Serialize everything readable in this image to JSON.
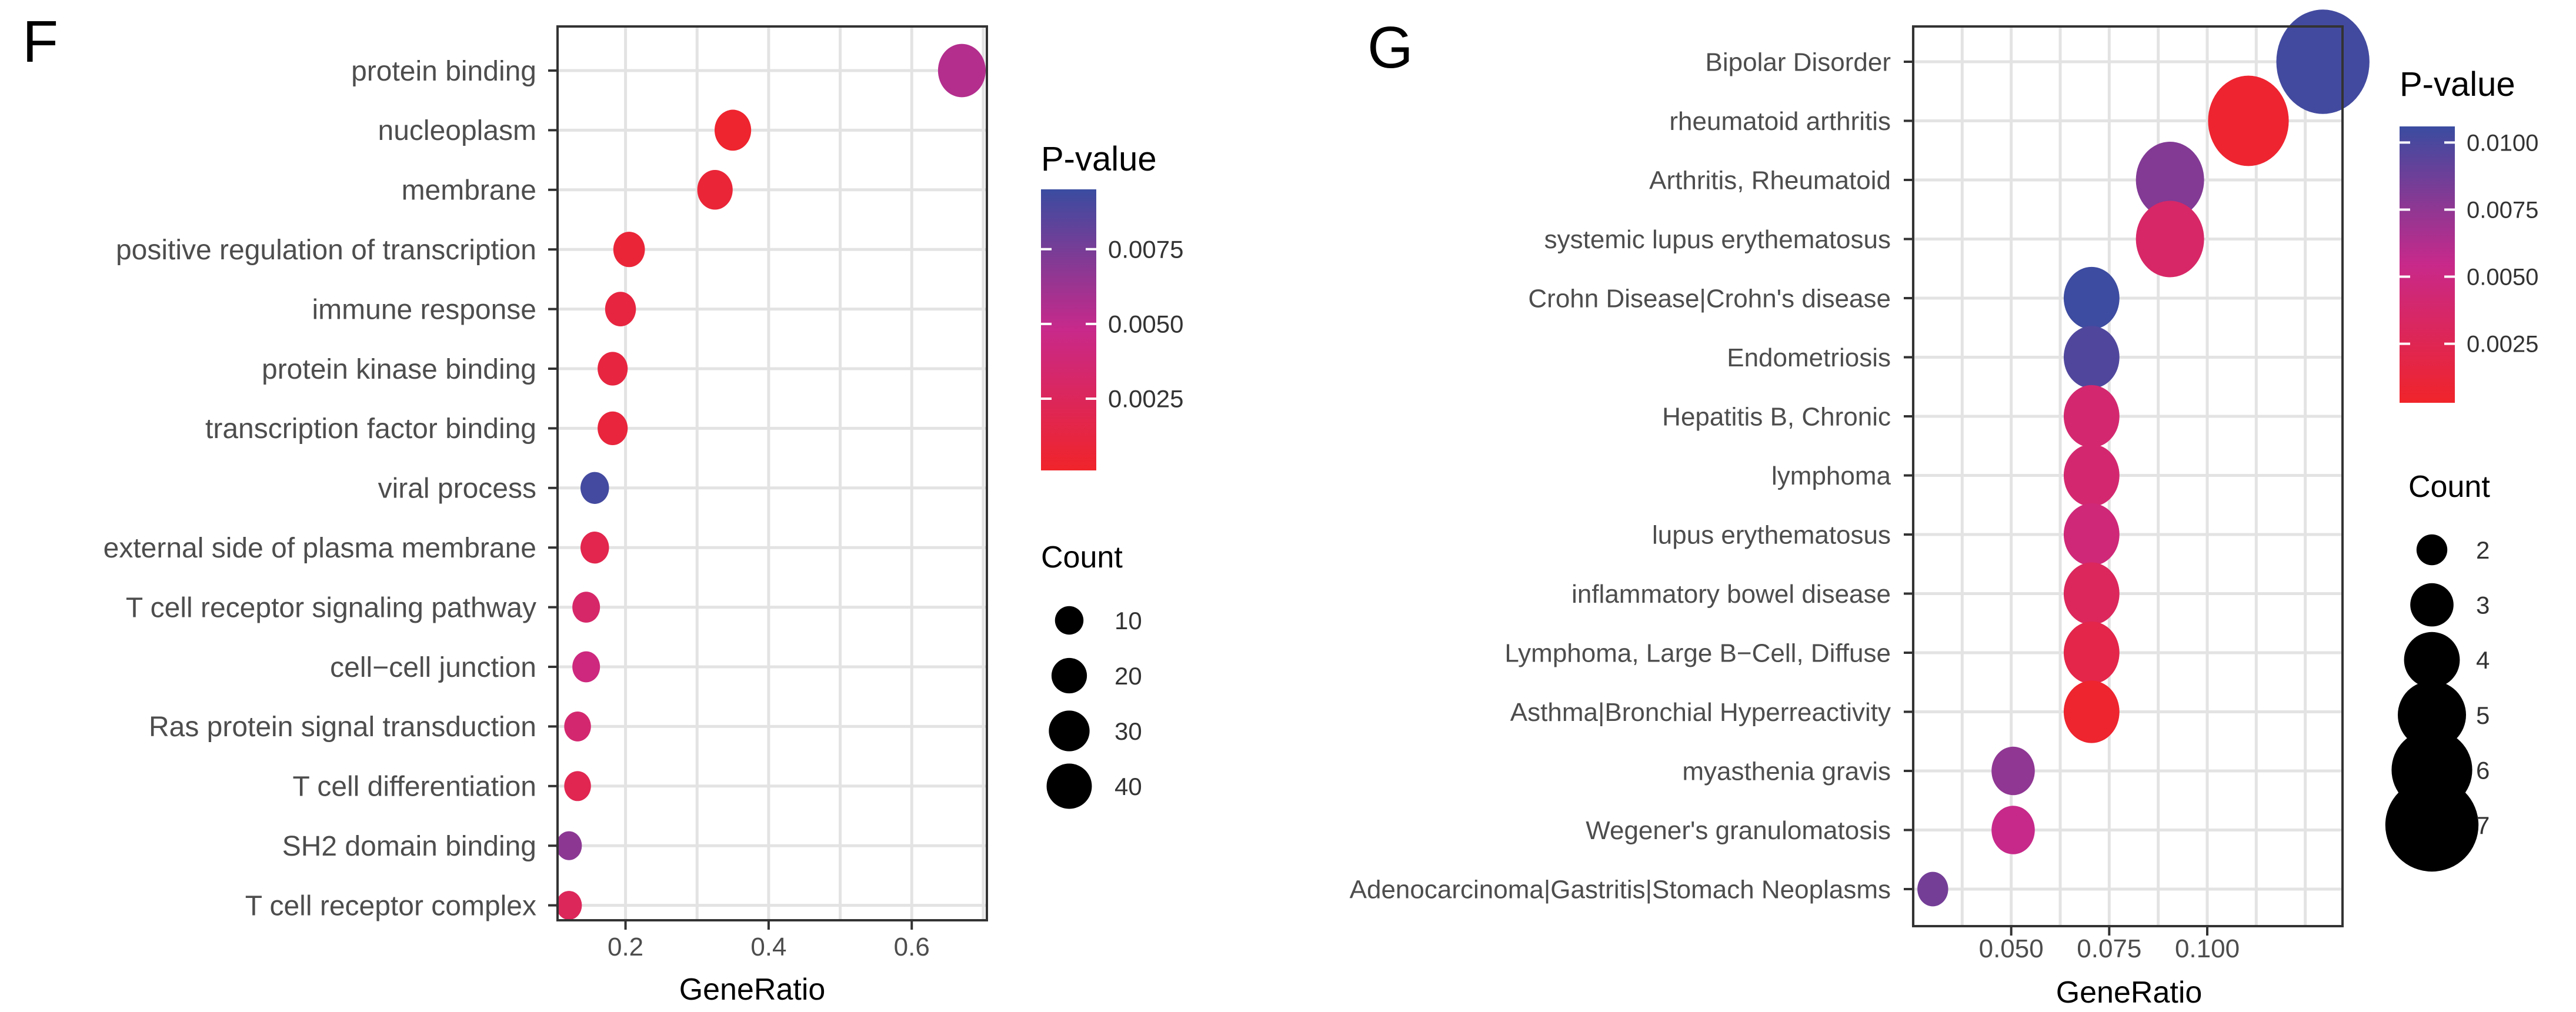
{
  "figure": {
    "panel_f_label": "F",
    "panel_g_label": "G"
  },
  "chart_data": [
    {
      "type": "scatter",
      "panel": "F",
      "title": "",
      "xlabel": "GeneRatio",
      "ylabel": "",
      "xlim": [
        0.105,
        0.705
      ],
      "xticks": [
        0.2,
        0.4,
        0.6
      ],
      "xtick_labels": [
        "0.2",
        "0.4",
        "0.6"
      ],
      "grid": true,
      "categories": [
        "protein binding",
        "nucleoplasm",
        "membrane",
        "positive regulation of transcription",
        "immune response",
        "protein kinase binding",
        "transcription factor binding",
        "viral process",
        "external side of plasma membrane",
        "T cell receptor signaling pathway",
        "cell−cell junction",
        "Ras protein signal transduction",
        "T cell differentiation",
        "SH2 domain binding",
        "T cell receptor complex"
      ],
      "points": [
        {
          "term": "protein binding",
          "gene_ratio": 0.67,
          "count": 46,
          "p_value": 0.0055
        },
        {
          "term": "nucleoplasm",
          "gene_ratio": 0.35,
          "count": 22,
          "p_value": 0.0003
        },
        {
          "term": "membrane",
          "gene_ratio": 0.325,
          "count": 20,
          "p_value": 0.0008
        },
        {
          "term": "positive regulation of transcription",
          "gene_ratio": 0.205,
          "count": 14,
          "p_value": 0.0008
        },
        {
          "term": "immune response",
          "gene_ratio": 0.193,
          "count": 13,
          "p_value": 0.0012
        },
        {
          "term": "protein kinase binding",
          "gene_ratio": 0.182,
          "count": 12,
          "p_value": 0.0012
        },
        {
          "term": "transcription factor binding",
          "gene_ratio": 0.182,
          "count": 12,
          "p_value": 0.001
        },
        {
          "term": "viral process",
          "gene_ratio": 0.157,
          "count": 10,
          "p_value": 0.0092
        },
        {
          "term": "external side of plasma membrane",
          "gene_ratio": 0.157,
          "count": 10,
          "p_value": 0.0018
        },
        {
          "term": "T cell receptor signaling pathway",
          "gene_ratio": 0.145,
          "count": 9,
          "p_value": 0.0032
        },
        {
          "term": "cell−cell junction",
          "gene_ratio": 0.145,
          "count": 9,
          "p_value": 0.0042
        },
        {
          "term": "Ras protein signal transduction",
          "gene_ratio": 0.133,
          "count": 8,
          "p_value": 0.0035
        },
        {
          "term": "T cell differentiation",
          "gene_ratio": 0.133,
          "count": 8,
          "p_value": 0.002
        },
        {
          "term": "SH2 domain binding",
          "gene_ratio": 0.121,
          "count": 7,
          "p_value": 0.0068
        },
        {
          "term": "T cell receptor complex",
          "gene_ratio": 0.121,
          "count": 7,
          "p_value": 0.0025
        }
      ],
      "color_legend": {
        "title": "P-value",
        "range": [
          0.0001,
          0.0095
        ],
        "ticks": [
          0.0025,
          0.005,
          0.0075
        ],
        "tick_labels": [
          "0.0025",
          "0.0050",
          "0.0075"
        ],
        "low_color": "#f0242a",
        "mid_color": "#c8298a",
        "high_color": "#3a4ca0"
      },
      "size_legend": {
        "title": "Count",
        "values": [
          10,
          20,
          30,
          40
        ],
        "labels": [
          "10",
          "20",
          "30",
          "40"
        ]
      }
    },
    {
      "type": "scatter",
      "panel": "G",
      "title": "",
      "xlabel": "GeneRatio",
      "ylabel": "",
      "xlim": [
        0.025,
        0.1345
      ],
      "xticks": [
        0.05,
        0.075,
        0.1
      ],
      "xtick_labels": [
        "0.050",
        "0.075",
        "0.100"
      ],
      "grid": true,
      "categories": [
        "Bipolar Disorder",
        "rheumatoid arthritis",
        "Arthritis, Rheumatoid",
        "systemic lupus erythematosus",
        "Crohn Disease|Crohn's disease",
        "Endometriosis",
        "Hepatitis B, Chronic",
        "lymphoma",
        "lupus erythematosus",
        "inflammatory bowel disease ",
        "Lymphoma, Large B−Cell, Diffuse",
        "Asthma|Bronchial Hyperreactivity",
        "myasthenia gravis",
        "Wegener's granulomatosis",
        "Adenocarcinoma|Gastritis|Stomach Neoplasms"
      ],
      "points": [
        {
          "term": "Bipolar Disorder",
          "gene_ratio": 0.1295,
          "count": 7,
          "p_value": 0.0103
        },
        {
          "term": "rheumatoid arthritis",
          "gene_ratio": 0.1105,
          "count": 6,
          "p_value": 0.0006
        },
        {
          "term": "Arthritis, Rheumatoid",
          "gene_ratio": 0.0905,
          "count": 5,
          "p_value": 0.008
        },
        {
          "term": "systemic lupus erythematosus",
          "gene_ratio": 0.0905,
          "count": 5,
          "p_value": 0.0035
        },
        {
          "term": "Crohn Disease|Crohn's disease",
          "gene_ratio": 0.0705,
          "count": 4,
          "p_value": 0.0105
        },
        {
          "term": "Endometriosis",
          "gene_ratio": 0.0705,
          "count": 4,
          "p_value": 0.0098
        },
        {
          "term": "Hepatitis B, Chronic",
          "gene_ratio": 0.0705,
          "count": 4,
          "p_value": 0.004
        },
        {
          "term": "lymphoma",
          "gene_ratio": 0.0705,
          "count": 4,
          "p_value": 0.004
        },
        {
          "term": "lupus erythematosus",
          "gene_ratio": 0.0705,
          "count": 4,
          "p_value": 0.0045
        },
        {
          "term": "inflammatory bowel disease ",
          "gene_ratio": 0.0705,
          "count": 4,
          "p_value": 0.003
        },
        {
          "term": "Lymphoma, Large B−Cell, Diffuse",
          "gene_ratio": 0.0705,
          "count": 4,
          "p_value": 0.002
        },
        {
          "term": "Asthma|Bronchial Hyperreactivity",
          "gene_ratio": 0.0705,
          "count": 4,
          "p_value": 0.0005
        },
        {
          "term": "myasthenia gravis",
          "gene_ratio": 0.0505,
          "count": 3,
          "p_value": 0.0075
        },
        {
          "term": "Wegener's granulomatosis",
          "gene_ratio": 0.0505,
          "count": 3,
          "p_value": 0.0055
        },
        {
          "term": "Adenocarcinoma|Gastritis|Stomach Neoplasms",
          "gene_ratio": 0.03,
          "count": 2,
          "p_value": 0.0085
        }
      ],
      "color_legend": {
        "title": "P-value",
        "range": [
          0.0003,
          0.0106
        ],
        "ticks": [
          0.0025,
          0.005,
          0.0075,
          0.01
        ],
        "tick_labels": [
          "0.0025",
          "0.0050",
          "0.0075",
          "0.0100"
        ],
        "low_color": "#f0242a",
        "mid_color": "#c8298a",
        "high_color": "#3a4ca0"
      },
      "size_legend": {
        "title": "Count",
        "values": [
          2,
          3,
          4,
          5,
          6,
          7
        ],
        "labels": [
          "2",
          "3",
          "4",
          "5",
          "6",
          "7"
        ]
      }
    }
  ]
}
